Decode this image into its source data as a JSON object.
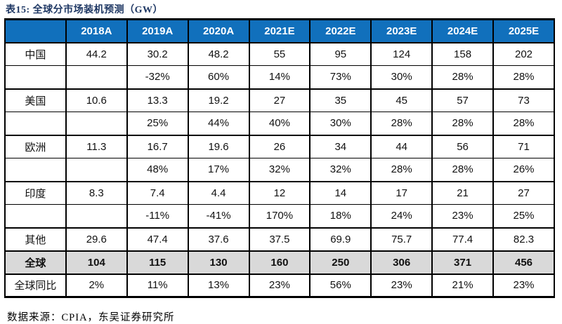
{
  "title": "表15:  全球分市场装机预测（GW）",
  "table": {
    "columns": [
      "",
      "2018A",
      "2019A",
      "2020A",
      "2021E",
      "2022E",
      "2023E",
      "2024E",
      "2025E"
    ],
    "rows": [
      {
        "label": "中国",
        "type": "value",
        "values": [
          "44.2",
          "30.2",
          "48.2",
          "55",
          "95",
          "124",
          "158",
          "202"
        ]
      },
      {
        "label": "",
        "type": "growth",
        "values": [
          "",
          "-32%",
          "60%",
          "14%",
          "73%",
          "30%",
          "28%",
          "28%"
        ]
      },
      {
        "label": "美国",
        "type": "value",
        "values": [
          "10.6",
          "13.3",
          "19.2",
          "27",
          "35",
          "45",
          "57",
          "73"
        ]
      },
      {
        "label": "",
        "type": "growth",
        "values": [
          "",
          "25%",
          "44%",
          "40%",
          "30%",
          "28%",
          "28%",
          "28%"
        ]
      },
      {
        "label": "欧洲",
        "type": "value",
        "values": [
          "11.3",
          "16.7",
          "19.6",
          "26",
          "34",
          "44",
          "56",
          "71"
        ]
      },
      {
        "label": "",
        "type": "growth",
        "values": [
          "",
          "48%",
          "17%",
          "32%",
          "32%",
          "28%",
          "28%",
          "26%"
        ]
      },
      {
        "label": "印度",
        "type": "value",
        "values": [
          "8.3",
          "7.4",
          "4.4",
          "12",
          "14",
          "17",
          "21",
          "27"
        ]
      },
      {
        "label": "",
        "type": "growth",
        "values": [
          "",
          "-11%",
          "-41%",
          "170%",
          "18%",
          "24%",
          "23%",
          "25%"
        ]
      },
      {
        "label": "其他",
        "type": "value",
        "values": [
          "29.6",
          "47.4",
          "37.6",
          "37.5",
          "69.9",
          "75.7",
          "77.4",
          "82.3"
        ]
      },
      {
        "label": "全球",
        "type": "total",
        "values": [
          "104",
          "115",
          "130",
          "160",
          "250",
          "306",
          "371",
          "456"
        ]
      },
      {
        "label": "全球同比",
        "type": "yoy",
        "values": [
          "2%",
          "11%",
          "13%",
          "23%",
          "56%",
          "23%",
          "21%",
          "23%"
        ]
      }
    ]
  },
  "footer": {
    "source": "数据来源：CPIA，东吴证券研究所"
  },
  "colors": {
    "header_bg": "#1170BC",
    "header_text": "#FFFFFF",
    "title_text": "#1F3864",
    "total_row_bg": "#D9D9D9",
    "border": "#000000"
  }
}
